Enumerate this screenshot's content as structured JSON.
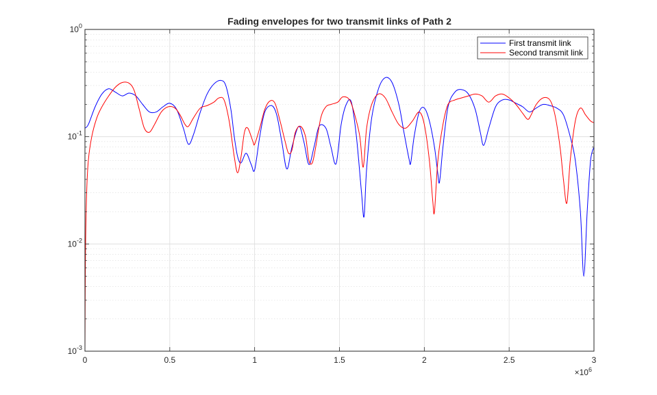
{
  "chart_data": {
    "type": "line",
    "title": "Fading envelopes for two transmit links of Path 2",
    "xlabel": "",
    "ylabel": "",
    "x_exponent_label": "×10",
    "x_exponent": "6",
    "xlim": [
      0,
      3000000
    ],
    "ylim": [
      0.001,
      1
    ],
    "yscale": "log",
    "grid": true,
    "minor_grid": true,
    "legend_position": "top-right",
    "x_ticks": [
      0,
      500000,
      1000000,
      1500000,
      2000000,
      2500000,
      3000000
    ],
    "x_tick_labels": [
      "0",
      "0.5",
      "1",
      "1.5",
      "2",
      "2.5",
      "3"
    ],
    "y_ticks": [
      0.001,
      0.01,
      0.1,
      1
    ],
    "y_tick_bases": [
      "10",
      "10",
      "10",
      "10"
    ],
    "y_tick_exponents": [
      "-3",
      "-2",
      "-1",
      "0"
    ],
    "series": [
      {
        "name": "First transmit link",
        "color": "#0000ff",
        "x": [
          0,
          20000,
          60000,
          100000,
          140000,
          180000,
          220000,
          260000,
          300000,
          340000,
          380000,
          420000,
          460000,
          500000,
          540000,
          580000,
          610000,
          640000,
          680000,
          720000,
          760000,
          800000,
          830000,
          860000,
          880000,
          900000,
          920000,
          950000,
          980000,
          1000000,
          1030000,
          1060000,
          1100000,
          1130000,
          1160000,
          1190000,
          1220000,
          1260000,
          1290000,
          1320000,
          1350000,
          1380000,
          1420000,
          1450000,
          1480000,
          1510000,
          1540000,
          1570000,
          1600000,
          1630000,
          1645000,
          1660000,
          1690000,
          1730000,
          1770000,
          1810000,
          1850000,
          1880000,
          1910000,
          1920000,
          1940000,
          1970000,
          2000000,
          2030000,
          2060000,
          2080000,
          2090000,
          2110000,
          2140000,
          2180000,
          2220000,
          2260000,
          2300000,
          2330000,
          2350000,
          2380000,
          2420000,
          2460000,
          2500000,
          2540000,
          2580000,
          2620000,
          2660000,
          2700000,
          2740000,
          2780000,
          2820000,
          2860000,
          2890000,
          2920000,
          2940000,
          2960000,
          2980000,
          3000000
        ],
        "y": [
          0.12,
          0.13,
          0.19,
          0.25,
          0.28,
          0.26,
          0.24,
          0.255,
          0.24,
          0.2,
          0.17,
          0.17,
          0.19,
          0.205,
          0.18,
          0.12,
          0.085,
          0.105,
          0.17,
          0.25,
          0.31,
          0.335,
          0.3,
          0.18,
          0.1,
          0.065,
          0.057,
          0.07,
          0.055,
          0.049,
          0.1,
          0.17,
          0.195,
          0.16,
          0.09,
          0.05,
          0.08,
          0.125,
          0.09,
          0.055,
          0.08,
          0.125,
          0.12,
          0.08,
          0.056,
          0.13,
          0.2,
          0.21,
          0.1,
          0.03,
          0.018,
          0.05,
          0.15,
          0.28,
          0.355,
          0.32,
          0.2,
          0.11,
          0.062,
          0.057,
          0.1,
          0.17,
          0.185,
          0.14,
          0.08,
          0.045,
          0.038,
          0.08,
          0.19,
          0.26,
          0.275,
          0.25,
          0.18,
          0.11,
          0.083,
          0.12,
          0.19,
          0.22,
          0.22,
          0.205,
          0.19,
          0.17,
          0.185,
          0.2,
          0.195,
          0.185,
          0.16,
          0.1,
          0.06,
          0.02,
          0.005,
          0.02,
          0.06,
          0.08
        ]
      },
      {
        "name": "Second transmit link",
        "color": "#ff0000",
        "x": [
          0,
          3000,
          10000,
          20000,
          40000,
          70000,
          100000,
          140000,
          180000,
          220000,
          260000,
          290000,
          320000,
          350000,
          380000,
          410000,
          450000,
          490000,
          530000,
          560000,
          590000,
          610000,
          640000,
          680000,
          720000,
          760000,
          790000,
          820000,
          850000,
          880000,
          900000,
          920000,
          940000,
          960000,
          990000,
          1000000,
          1030000,
          1060000,
          1090000,
          1120000,
          1150000,
          1180000,
          1200000,
          1220000,
          1240000,
          1270000,
          1300000,
          1320000,
          1340000,
          1360000,
          1390000,
          1420000,
          1450000,
          1490000,
          1520000,
          1560000,
          1590000,
          1620000,
          1640000,
          1660000,
          1690000,
          1730000,
          1770000,
          1810000,
          1850000,
          1890000,
          1930000,
          1970000,
          2000000,
          2030000,
          2050000,
          2060000,
          2080000,
          2110000,
          2140000,
          2180000,
          2220000,
          2260000,
          2300000,
          2340000,
          2380000,
          2420000,
          2460000,
          2500000,
          2540000,
          2580000,
          2610000,
          2630000,
          2660000,
          2700000,
          2740000,
          2770000,
          2800000,
          2820000,
          2840000,
          2860000,
          2890000,
          2920000,
          2950000,
          2980000,
          3000000
        ],
        "y": [
          0.001,
          0.008,
          0.03,
          0.06,
          0.1,
          0.15,
          0.19,
          0.24,
          0.29,
          0.32,
          0.315,
          0.27,
          0.18,
          0.12,
          0.11,
          0.13,
          0.17,
          0.19,
          0.185,
          0.16,
          0.13,
          0.125,
          0.15,
          0.185,
          0.195,
          0.21,
          0.23,
          0.22,
          0.14,
          0.065,
          0.046,
          0.065,
          0.11,
          0.12,
          0.09,
          0.085,
          0.12,
          0.18,
          0.215,
          0.205,
          0.14,
          0.09,
          0.07,
          0.075,
          0.11,
          0.125,
          0.1,
          0.06,
          0.057,
          0.08,
          0.15,
          0.19,
          0.2,
          0.21,
          0.235,
          0.22,
          0.16,
          0.1,
          0.052,
          0.12,
          0.2,
          0.25,
          0.23,
          0.17,
          0.13,
          0.12,
          0.14,
          0.17,
          0.13,
          0.06,
          0.025,
          0.02,
          0.06,
          0.13,
          0.2,
          0.22,
          0.23,
          0.24,
          0.25,
          0.24,
          0.21,
          0.24,
          0.25,
          0.23,
          0.2,
          0.165,
          0.145,
          0.16,
          0.2,
          0.23,
          0.22,
          0.16,
          0.08,
          0.04,
          0.024,
          0.06,
          0.14,
          0.185,
          0.16,
          0.14,
          0.135
        ]
      }
    ]
  }
}
